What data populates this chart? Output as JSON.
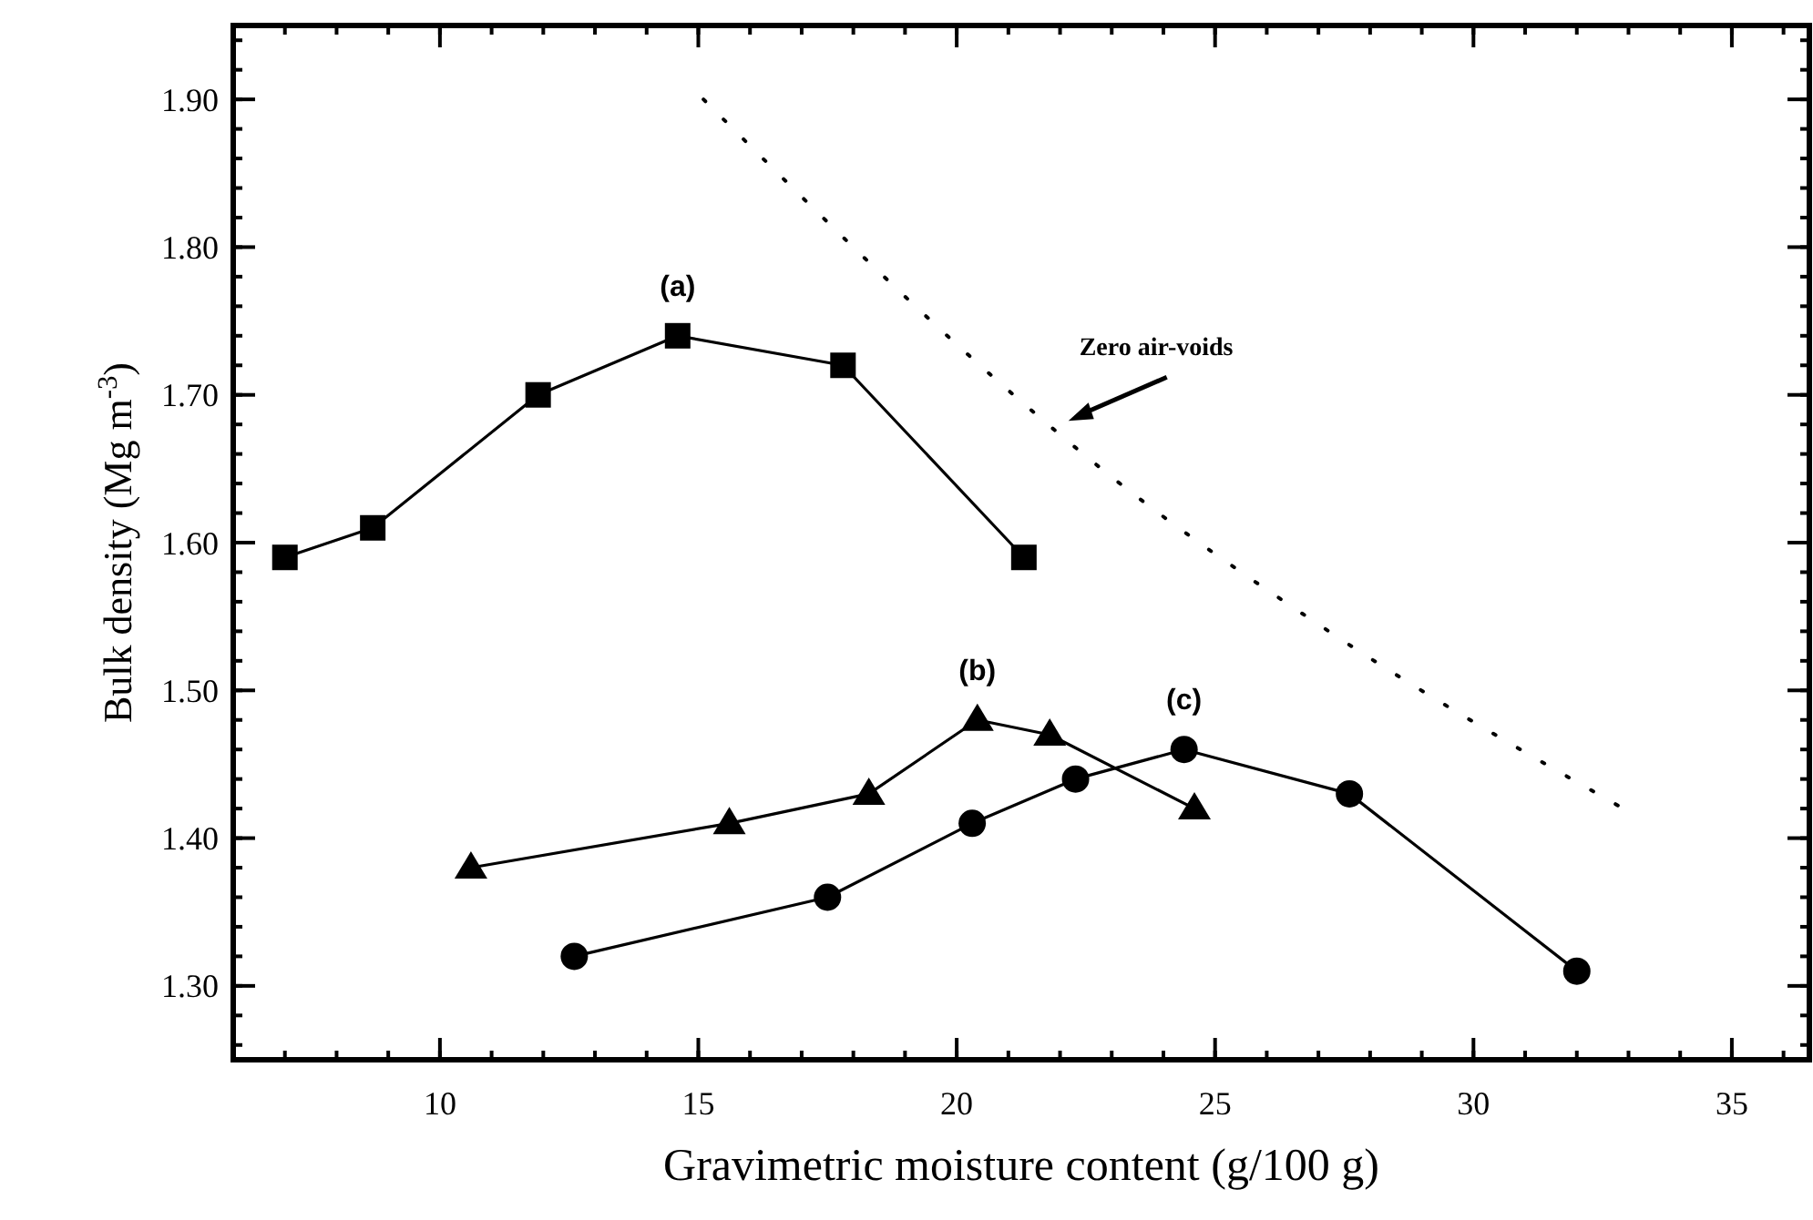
{
  "chart_data": {
    "type": "line",
    "xlabel": "Gravimetric moisture content (g/100 g)",
    "ylabel": "Bulk density (Mg m$^{-3}$)",
    "xlim": [
      6,
      36.5
    ],
    "xticks": [
      10,
      15,
      20,
      25,
      30,
      35
    ],
    "ylim": [
      1.25,
      1.95
    ],
    "yticks": [
      {
        "value": 1.3,
        "label": "1.30"
      },
      {
        "value": 1.4,
        "label": "1.40"
      },
      {
        "value": 1.5,
        "label": "1.50"
      },
      {
        "value": 1.6,
        "label": "1.60"
      },
      {
        "value": 1.7,
        "label": "1.70"
      },
      {
        "value": 1.8,
        "label": "1.80"
      },
      {
        "value": 1.9,
        "label": "1.90"
      }
    ],
    "grid": false,
    "series": [
      {
        "color": "#000000",
        "marker": "square",
        "line_style": "solid",
        "x": [
          7.0,
          8.7,
          11.9,
          14.6,
          17.8,
          21.3
        ],
        "values": [
          1.59,
          1.61,
          1.7,
          1.74,
          1.72,
          1.59
        ]
      },
      {
        "color": "#000000",
        "marker": "triangle",
        "line_style": "solid",
        "x": [
          10.6,
          15.6,
          18.3,
          20.4,
          21.8,
          24.6
        ],
        "values": [
          1.38,
          1.41,
          1.43,
          1.48,
          1.47,
          1.42
        ]
      },
      {
        "color": "#000000",
        "marker": "circle",
        "line_style": "solid",
        "x": [
          12.6,
          17.5,
          20.3,
          22.3,
          24.4,
          27.6,
          32.0
        ],
        "values": [
          1.32,
          1.36,
          1.41,
          1.44,
          1.46,
          1.43,
          1.31
        ]
      },
      {
        "color": "#000000",
        "marker": "none",
        "line_style": "dotted",
        "x": [
          15.1,
          21.1,
          22.8,
          27.2,
          32.9
        ],
        "values": [
          1.9,
          1.7,
          1.65,
          1.54,
          1.42
        ]
      }
    ],
    "annotations": [
      {
        "text": "(a)",
        "x": 14.6,
        "y": 1.74
      },
      {
        "text": "(b)",
        "x": 20.4,
        "y": 1.48
      },
      {
        "text": "(c)",
        "x": 24.4,
        "y": 1.46
      },
      "Zero air-voids"
    ]
  }
}
